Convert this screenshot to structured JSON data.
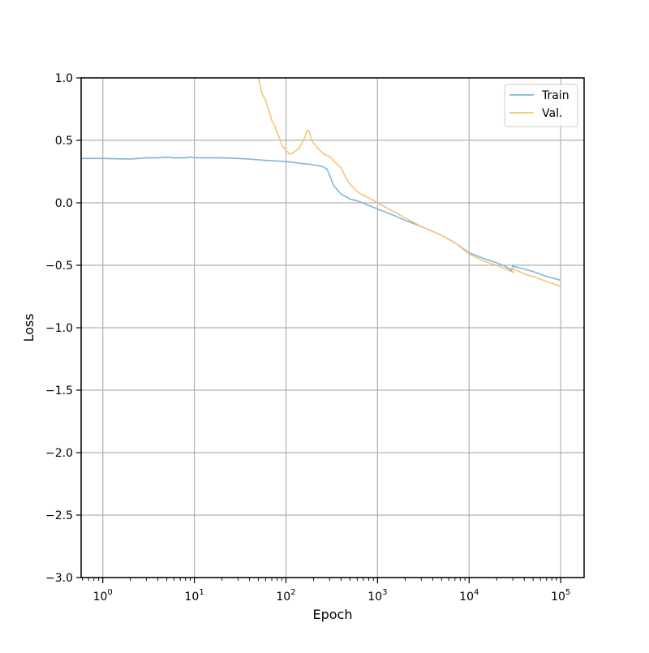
{
  "chart_data": {
    "type": "line",
    "title": "",
    "xlabel": "Epoch",
    "ylabel": "Loss",
    "xscale": "log",
    "xlim": [
      0.58,
      180000
    ],
    "ylim": [
      -3.0,
      1.0
    ],
    "grid": true,
    "legend_position": "top-right",
    "x_ticks": [
      {
        "value": 1,
        "base": "10",
        "exp": "0"
      },
      {
        "value": 10,
        "base": "10",
        "exp": "1"
      },
      {
        "value": 100,
        "base": "10",
        "exp": "2"
      },
      {
        "value": 1000,
        "base": "10",
        "exp": "3"
      },
      {
        "value": 10000,
        "base": "10",
        "exp": "4"
      },
      {
        "value": 100000,
        "base": "10",
        "exp": "5"
      }
    ],
    "y_ticks": [
      {
        "value": 1.0,
        "label": "1.0"
      },
      {
        "value": 0.5,
        "label": "0.5"
      },
      {
        "value": 0.0,
        "label": "0.0"
      },
      {
        "value": -0.5,
        "label": "−0.5"
      },
      {
        "value": -1.0,
        "label": "−1.0"
      },
      {
        "value": -1.5,
        "label": "−1.5"
      },
      {
        "value": -2.0,
        "label": "−2.0"
      },
      {
        "value": -2.5,
        "label": "−2.5"
      },
      {
        "value": -3.0,
        "label": "−3.0"
      }
    ],
    "series": [
      {
        "name": "Train",
        "color": "#7fb6d9",
        "x": [
          0.58,
          1,
          2,
          3,
          4,
          5,
          6,
          8,
          9,
          10,
          20,
          30,
          40,
          60,
          100,
          150,
          200,
          250,
          280,
          300,
          330,
          400,
          500,
          600,
          800,
          1000,
          1500,
          2000,
          3000,
          5000,
          7000,
          10000,
          15000,
          20000,
          25000,
          29000,
          30000,
          31000,
          40000,
          50000,
          70000,
          100000
        ],
        "y": [
          0.355,
          0.355,
          0.35,
          0.36,
          0.36,
          0.365,
          0.36,
          0.36,
          0.365,
          0.36,
          0.36,
          0.355,
          0.35,
          0.34,
          0.33,
          0.315,
          0.305,
          0.29,
          0.27,
          0.22,
          0.14,
          0.07,
          0.03,
          0.015,
          -0.02,
          -0.05,
          -0.1,
          -0.14,
          -0.19,
          -0.26,
          -0.32,
          -0.4,
          -0.45,
          -0.48,
          -0.51,
          -0.54,
          -0.5,
          -0.51,
          -0.53,
          -0.55,
          -0.59,
          -0.62
        ]
      },
      {
        "name": "Val.",
        "color": "#f5c27a",
        "x": [
          50,
          55,
          60,
          65,
          70,
          75,
          80,
          85,
          90,
          100,
          110,
          120,
          140,
          160,
          170,
          180,
          190,
          200,
          220,
          260,
          300,
          350,
          400,
          450,
          500,
          600,
          700,
          800,
          1000,
          1500,
          2000,
          3000,
          5000,
          7000,
          10000,
          15000,
          20000,
          25000,
          29000,
          30000,
          31000,
          40000,
          50000,
          70000,
          100000
        ],
        "y": [
          1.0,
          0.87,
          0.82,
          0.74,
          0.66,
          0.62,
          0.56,
          0.52,
          0.46,
          0.42,
          0.39,
          0.4,
          0.44,
          0.52,
          0.58,
          0.57,
          0.5,
          0.48,
          0.44,
          0.39,
          0.37,
          0.32,
          0.28,
          0.2,
          0.15,
          0.09,
          0.06,
          0.04,
          0.0,
          -0.07,
          -0.12,
          -0.19,
          -0.26,
          -0.32,
          -0.41,
          -0.47,
          -0.5,
          -0.53,
          -0.55,
          -0.56,
          -0.53,
          -0.57,
          -0.59,
          -0.63,
          -0.67
        ]
      }
    ]
  }
}
